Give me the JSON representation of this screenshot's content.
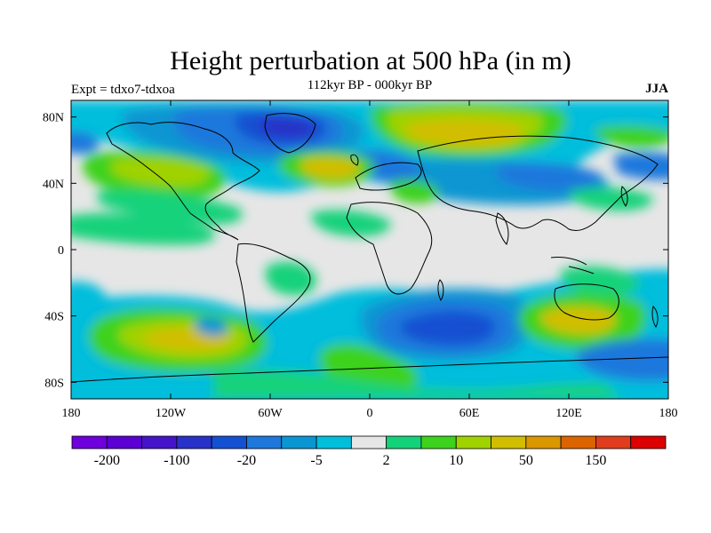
{
  "title": "Height perturbation at 500 hPa (in m)",
  "subtitle": "112kyr BP - 000kyr BP",
  "experiment": "Expt = tdxo7-tdxoa",
  "season": "JJA",
  "lat_ticks": [
    "80N",
    "40N",
    "0",
    "40S",
    "80S"
  ],
  "lon_ticks": [
    "180",
    "120W",
    "60W",
    "0",
    "60E",
    "120E",
    "180"
  ],
  "colorbar": {
    "colors": [
      "#6e00dc",
      "#5a00d2",
      "#4614c8",
      "#2832c8",
      "#1450d2",
      "#1e78dc",
      "#0a96d2",
      "#00bedc",
      "#e6e6e6",
      "#14d27a",
      "#3cd21e",
      "#a0d200",
      "#d2be00",
      "#dc9600",
      "#dc6400",
      "#e03c1e",
      "#dc0000"
    ],
    "labels": [
      "-200",
      "-100",
      "-20",
      "-5",
      "2",
      "10",
      "50",
      "150"
    ]
  },
  "colors": {
    "neutral": "#e6e6e6",
    "light_negative": "#00bedc",
    "medium_negative": "#0a96d2",
    "strong_negative": "#1e78dc",
    "stronger_negative": "#1450d2",
    "strongest_negative": "#2832c8",
    "light_positive": "#14d27a",
    "positive": "#3cd21e",
    "strong_positive": "#a0d200",
    "stronger_positive": "#d2be00",
    "strongest_positive": "#dc9600"
  }
}
